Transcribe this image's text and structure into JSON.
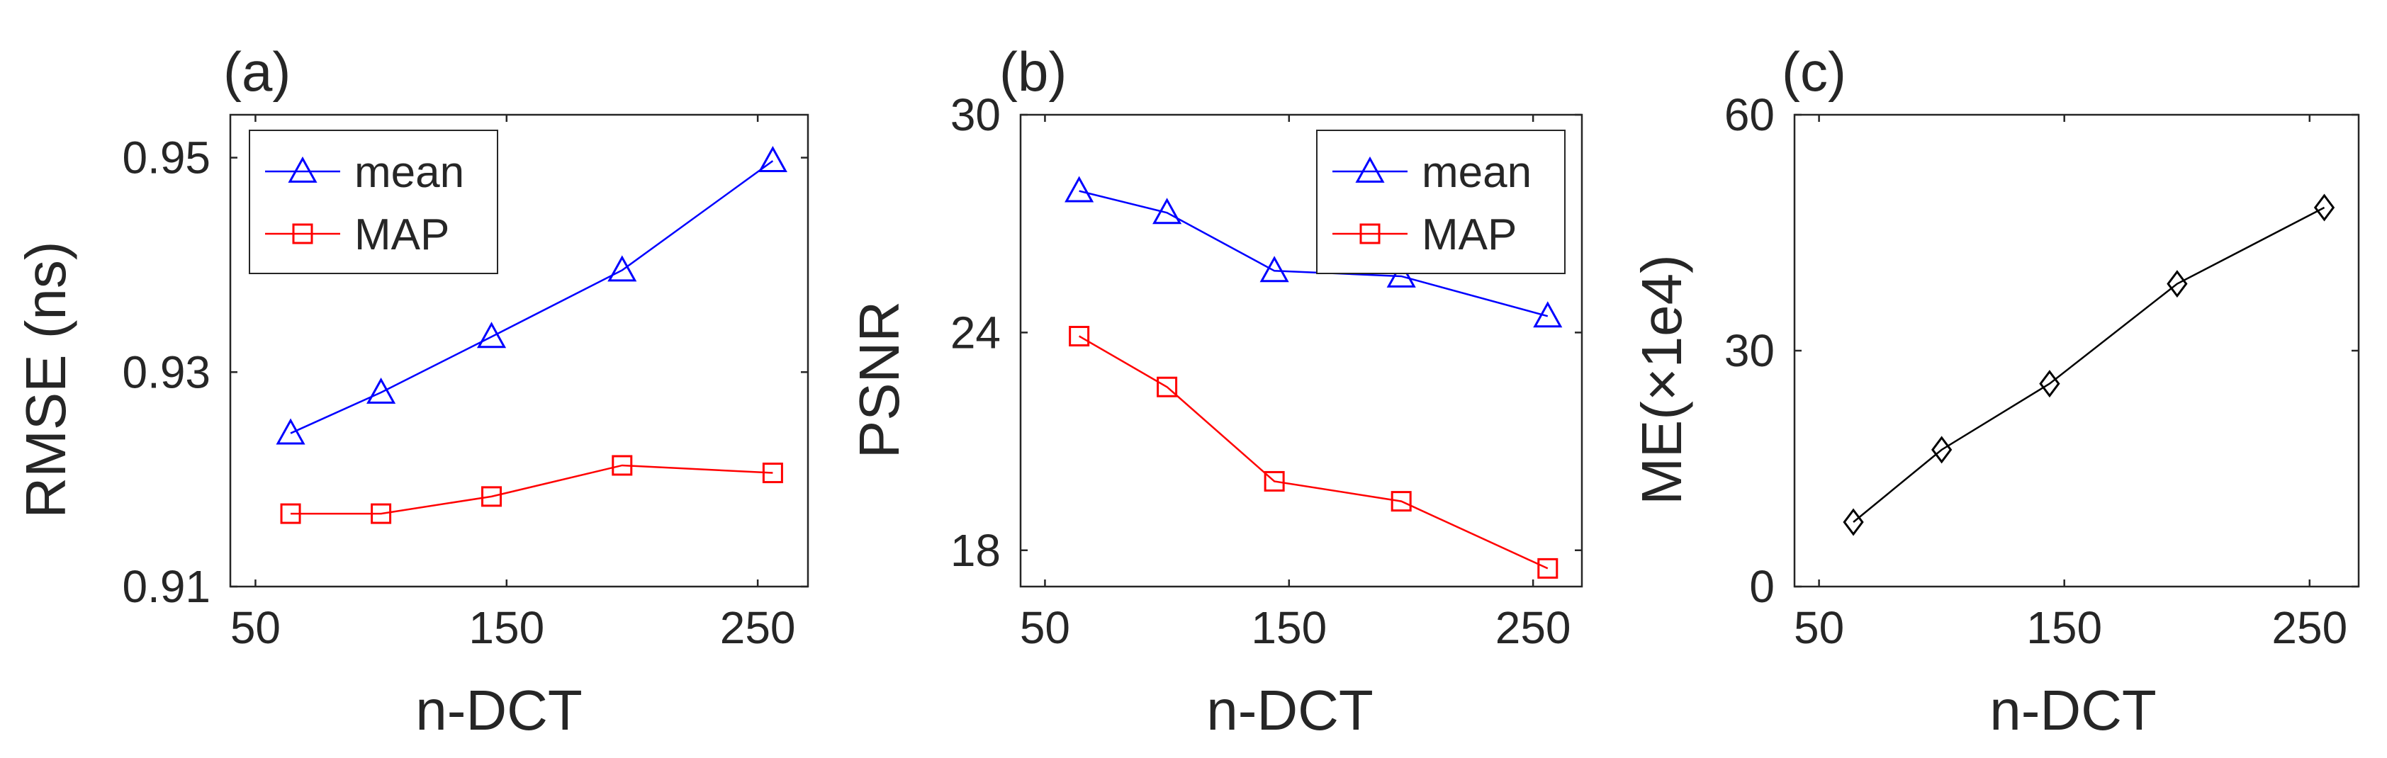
{
  "chart_data": [
    {
      "type": "line",
      "panel_label": "(a)",
      "xlabel": "n-DCT",
      "ylabel": "RMSE (ns)",
      "x": [
        64,
        100,
        144,
        196,
        256
      ],
      "xlim": [
        40,
        270
      ],
      "ylim": [
        0.91,
        0.954
      ],
      "xticks": [
        50,
        150,
        250
      ],
      "xtick_labels": [
        "50",
        "150",
        "250"
      ],
      "yticks": [
        0.91,
        0.93,
        0.95
      ],
      "ytick_labels": [
        "0.91",
        "0.93",
        "0.95"
      ],
      "legend_position": "top-left",
      "series": [
        {
          "name": "mean",
          "marker": "triangle",
          "color": "#0000ff",
          "values": [
            0.9243,
            0.9281,
            0.9333,
            0.9395,
            0.9497
          ]
        },
        {
          "name": "MAP",
          "marker": "square",
          "color": "#ff0000",
          "values": [
            0.9168,
            0.9168,
            0.9184,
            0.9213,
            0.9206
          ]
        }
      ]
    },
    {
      "type": "line",
      "panel_label": "(b)",
      "xlabel": "n-DCT",
      "ylabel": "PSNR",
      "x": [
        64,
        100,
        144,
        196,
        256
      ],
      "xlim": [
        40,
        270
      ],
      "ylim": [
        17,
        30
      ],
      "xticks": [
        50,
        150,
        250
      ],
      "xtick_labels": [
        "50",
        "150",
        "250"
      ],
      "yticks": [
        18,
        24,
        30
      ],
      "ytick_labels": [
        "18",
        "24",
        "30"
      ],
      "legend_position": "top-right",
      "series": [
        {
          "name": "mean",
          "marker": "triangle",
          "color": "#0000ff",
          "values": [
            27.9,
            27.3,
            25.7,
            25.55,
            24.45
          ]
        },
        {
          "name": "MAP",
          "marker": "square",
          "color": "#ff0000",
          "values": [
            23.9,
            22.5,
            19.9,
            19.35,
            17.5
          ]
        }
      ]
    },
    {
      "type": "line",
      "panel_label": "(c)",
      "xlabel": "n-DCT",
      "ylabel": "ME(×1e4)",
      "x": [
        64,
        100,
        144,
        196,
        256
      ],
      "xlim": [
        40,
        270
      ],
      "ylim": [
        0,
        60
      ],
      "xticks": [
        50,
        150,
        250
      ],
      "xtick_labels": [
        "50",
        "150",
        "250"
      ],
      "yticks": [
        0,
        30,
        60
      ],
      "ytick_labels": [
        "0",
        "30",
        "60"
      ],
      "series": [
        {
          "name": "ME",
          "marker": "diamond",
          "color": "#000000",
          "values": [
            8.2,
            17.4,
            25.8,
            38.5,
            48.2
          ]
        }
      ]
    }
  ]
}
